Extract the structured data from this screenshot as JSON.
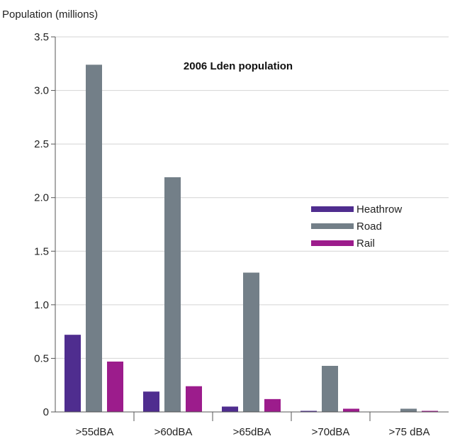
{
  "chart_data": {
    "type": "bar",
    "title": "2006 Lden population",
    "ylabel": "Population (millions)",
    "xlabel": "",
    "ylim": [
      0,
      3.5
    ],
    "yticks": [
      0,
      0.5,
      1.0,
      1.5,
      2.0,
      2.5,
      3.0,
      3.5
    ],
    "ytick_labels": [
      "0",
      "0.5",
      "1.0",
      "1.5",
      "2.0",
      "2.5",
      "3.0",
      "3.5"
    ],
    "categories": [
      ">55dBA",
      ">60dBA",
      ">65dBA",
      ">70dBA",
      ">75 dBA"
    ],
    "series": [
      {
        "name": "Heathrow",
        "color": "#4f2d8f",
        "values": [
          0.72,
          0.19,
          0.05,
          0.01,
          0.0
        ]
      },
      {
        "name": "Road",
        "color": "#737f88",
        "values": [
          3.24,
          2.19,
          1.3,
          0.43,
          0.03
        ]
      },
      {
        "name": "Rail",
        "color": "#9c1c8c",
        "values": [
          0.47,
          0.24,
          0.12,
          0.03,
          0.01
        ]
      }
    ],
    "grid": true,
    "legend_position": "center-right"
  }
}
